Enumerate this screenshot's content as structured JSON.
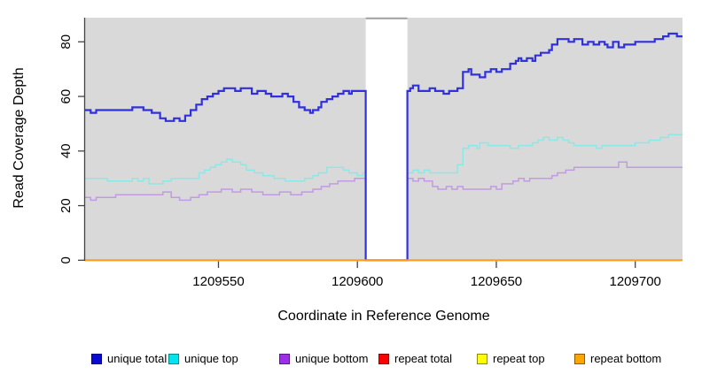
{
  "chart_data": {
    "type": "line",
    "subtype": "step-after",
    "title": "",
    "xlabel": "Coordinate in Reference Genome",
    "ylabel": "Read Coverage Depth",
    "xlim": [
      1209502,
      1209717
    ],
    "ylim": [
      0,
      88
    ],
    "xticks": [
      1209550,
      1209600,
      1209650,
      1209700
    ],
    "yticks": [
      0,
      20,
      40,
      60,
      80
    ],
    "grid": false,
    "plot_background": "#d9d9d9",
    "page_background": "#ffffff",
    "axis_color": "#444444",
    "gap_region": {
      "x_start": 1209603,
      "x_end": 1209618,
      "fill": "#ffffff",
      "top_edge_color": "#9f9f9f",
      "note": "masked no-data strip; unique total steps down to 0 at its edges"
    },
    "legend_position": "bottom",
    "series": [
      {
        "name": "unique total",
        "line_color": "#3030dd",
        "legend_color": "#0b0bd0",
        "legend_border": "#00008b",
        "line_width": 2.2,
        "points": [
          [
            1209502,
            55
          ],
          [
            1209504,
            54
          ],
          [
            1209506,
            55
          ],
          [
            1209519,
            56
          ],
          [
            1209523,
            55
          ],
          [
            1209526,
            54
          ],
          [
            1209529,
            52
          ],
          [
            1209531,
            51
          ],
          [
            1209534,
            52
          ],
          [
            1209536,
            51
          ],
          [
            1209538,
            53
          ],
          [
            1209540,
            55
          ],
          [
            1209542,
            57
          ],
          [
            1209544,
            59
          ],
          [
            1209546,
            60
          ],
          [
            1209548,
            61
          ],
          [
            1209550,
            62
          ],
          [
            1209552,
            63
          ],
          [
            1209556,
            62
          ],
          [
            1209558,
            63
          ],
          [
            1209562,
            61
          ],
          [
            1209564,
            62
          ],
          [
            1209567,
            61
          ],
          [
            1209569,
            60
          ],
          [
            1209573,
            61
          ],
          [
            1209575,
            60
          ],
          [
            1209577,
            58
          ],
          [
            1209579,
            56
          ],
          [
            1209581,
            55
          ],
          [
            1209583,
            54
          ],
          [
            1209584,
            55
          ],
          [
            1209586,
            56
          ],
          [
            1209587,
            58
          ],
          [
            1209589,
            59
          ],
          [
            1209591,
            60
          ],
          [
            1209593,
            61
          ],
          [
            1209595,
            62
          ],
          [
            1209597,
            61
          ],
          [
            1209598,
            62
          ],
          [
            1209603,
            0
          ],
          [
            1209618,
            62
          ],
          [
            1209619,
            63
          ],
          [
            1209620,
            64
          ],
          [
            1209622,
            62
          ],
          [
            1209626,
            63
          ],
          [
            1209628,
            62
          ],
          [
            1209631,
            61
          ],
          [
            1209633,
            62
          ],
          [
            1209636,
            63
          ],
          [
            1209638,
            69
          ],
          [
            1209640,
            70
          ],
          [
            1209641,
            68
          ],
          [
            1209644,
            67
          ],
          [
            1209646,
            69
          ],
          [
            1209648,
            70
          ],
          [
            1209650,
            69
          ],
          [
            1209652,
            70
          ],
          [
            1209655,
            72
          ],
          [
            1209657,
            73
          ],
          [
            1209658,
            74
          ],
          [
            1209659,
            73
          ],
          [
            1209661,
            74
          ],
          [
            1209663,
            73
          ],
          [
            1209664,
            75
          ],
          [
            1209666,
            76
          ],
          [
            1209669,
            77
          ],
          [
            1209670,
            79
          ],
          [
            1209672,
            81
          ],
          [
            1209676,
            80
          ],
          [
            1209678,
            81
          ],
          [
            1209681,
            79
          ],
          [
            1209683,
            80
          ],
          [
            1209685,
            79
          ],
          [
            1209687,
            80
          ],
          [
            1209689,
            79
          ],
          [
            1209690,
            78
          ],
          [
            1209692,
            80
          ],
          [
            1209694,
            78
          ],
          [
            1209696,
            79
          ],
          [
            1209700,
            80
          ],
          [
            1209707,
            81
          ],
          [
            1209710,
            82
          ],
          [
            1209712,
            83
          ],
          [
            1209715,
            82
          ]
        ]
      },
      {
        "name": "unique top",
        "line_color": "#8ae9e6",
        "legend_color": "#00e4ee",
        "legend_border": "#008b8b",
        "line_width": 1.5,
        "points": [
          [
            1209502,
            30
          ],
          [
            1209510,
            29
          ],
          [
            1209519,
            30
          ],
          [
            1209521,
            29
          ],
          [
            1209523,
            30
          ],
          [
            1209525,
            28
          ],
          [
            1209530,
            29
          ],
          [
            1209533,
            30
          ],
          [
            1209543,
            32
          ],
          [
            1209545,
            33
          ],
          [
            1209547,
            34
          ],
          [
            1209549,
            35
          ],
          [
            1209551,
            36
          ],
          [
            1209553,
            37
          ],
          [
            1209555,
            36
          ],
          [
            1209558,
            35
          ],
          [
            1209560,
            33
          ],
          [
            1209563,
            32
          ],
          [
            1209566,
            31
          ],
          [
            1209570,
            30
          ],
          [
            1209574,
            29
          ],
          [
            1209581,
            30
          ],
          [
            1209584,
            31
          ],
          [
            1209586,
            32
          ],
          [
            1209589,
            34
          ],
          [
            1209595,
            33
          ],
          [
            1209597,
            32
          ],
          [
            1209600,
            31
          ],
          [
            1209602,
            32
          ],
          [
            1209604,
            31
          ],
          [
            1209618,
            32
          ],
          [
            1209620,
            33
          ],
          [
            1209622,
            32
          ],
          [
            1209624,
            33
          ],
          [
            1209626,
            32
          ],
          [
            1209636,
            35
          ],
          [
            1209638,
            41
          ],
          [
            1209640,
            42
          ],
          [
            1209643,
            41
          ],
          [
            1209644,
            43
          ],
          [
            1209647,
            42
          ],
          [
            1209655,
            41
          ],
          [
            1209658,
            42
          ],
          [
            1209663,
            43
          ],
          [
            1209665,
            44
          ],
          [
            1209667,
            45
          ],
          [
            1209669,
            44
          ],
          [
            1209672,
            45
          ],
          [
            1209674,
            44
          ],
          [
            1209676,
            43
          ],
          [
            1209678,
            42
          ],
          [
            1209686,
            41
          ],
          [
            1209688,
            42
          ],
          [
            1209700,
            43
          ],
          [
            1209705,
            44
          ],
          [
            1209709,
            45
          ],
          [
            1209712,
            46
          ]
        ]
      },
      {
        "name": "unique bottom",
        "line_color": "#c29ae2",
        "legend_color": "#9d2fe8",
        "legend_border": "#551a8b",
        "line_width": 1.5,
        "points": [
          [
            1209502,
            23
          ],
          [
            1209504,
            22
          ],
          [
            1209506,
            23
          ],
          [
            1209513,
            24
          ],
          [
            1209530,
            25
          ],
          [
            1209533,
            23
          ],
          [
            1209536,
            22
          ],
          [
            1209540,
            23
          ],
          [
            1209543,
            24
          ],
          [
            1209546,
            25
          ],
          [
            1209551,
            26
          ],
          [
            1209555,
            25
          ],
          [
            1209558,
            26
          ],
          [
            1209562,
            25
          ],
          [
            1209566,
            24
          ],
          [
            1209572,
            25
          ],
          [
            1209576,
            24
          ],
          [
            1209580,
            25
          ],
          [
            1209584,
            26
          ],
          [
            1209587,
            27
          ],
          [
            1209590,
            28
          ],
          [
            1209593,
            29
          ],
          [
            1209599,
            30
          ],
          [
            1209618,
            30
          ],
          [
            1209620,
            29
          ],
          [
            1209622,
            30
          ],
          [
            1209624,
            29
          ],
          [
            1209627,
            27
          ],
          [
            1209629,
            26
          ],
          [
            1209632,
            27
          ],
          [
            1209634,
            26
          ],
          [
            1209636,
            27
          ],
          [
            1209638,
            26
          ],
          [
            1209648,
            27
          ],
          [
            1209650,
            26
          ],
          [
            1209652,
            28
          ],
          [
            1209656,
            29
          ],
          [
            1209658,
            30
          ],
          [
            1209660,
            29
          ],
          [
            1209662,
            30
          ],
          [
            1209670,
            31
          ],
          [
            1209672,
            32
          ],
          [
            1209675,
            33
          ],
          [
            1209678,
            34
          ],
          [
            1209694,
            36
          ],
          [
            1209697,
            34
          ]
        ]
      },
      {
        "name": "repeat total",
        "line_color": "#ff0000",
        "legend_color": "#ff0000",
        "legend_border": "#8b0000",
        "line_width": 1.5,
        "points": [
          [
            1209502,
            0
          ]
        ]
      },
      {
        "name": "repeat top",
        "line_color": "#ffff00",
        "legend_color": "#ffff00",
        "legend_border": "#8b8b00",
        "line_width": 1.5,
        "points": [
          [
            1209502,
            0
          ]
        ]
      },
      {
        "name": "repeat bottom",
        "line_color": "#ff9d1f",
        "legend_color": "#ffa500",
        "legend_border": "#8b5a00",
        "line_width": 2.2,
        "points": [
          [
            1209502,
            0
          ]
        ]
      }
    ]
  }
}
